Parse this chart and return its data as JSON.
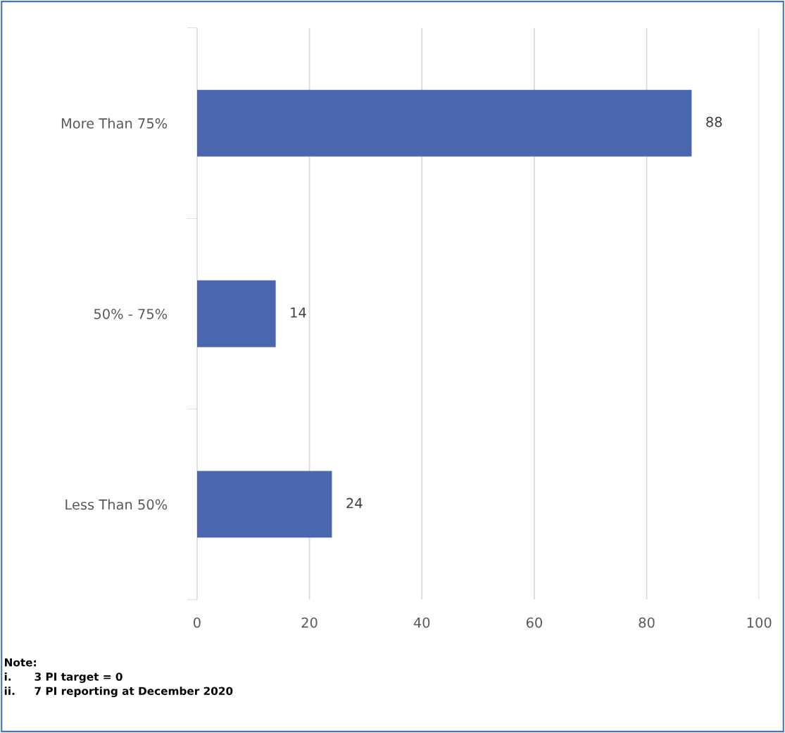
{
  "chart_data": {
    "type": "bar",
    "orientation": "horizontal",
    "categories": [
      "More Than 75%",
      "50% - 75%",
      "Less Than 50%"
    ],
    "values": [
      88,
      14,
      24
    ],
    "color": "#4a67ae",
    "xlim": [
      0,
      100
    ],
    "xticks": [
      0,
      20,
      40,
      60,
      80,
      100
    ],
    "grid": "x",
    "data_labels": true,
    "legend": false,
    "annotations": [
      "Note:",
      "i.      3 PI target = 0",
      "ii.     7 PI reporting at December 2020"
    ]
  }
}
